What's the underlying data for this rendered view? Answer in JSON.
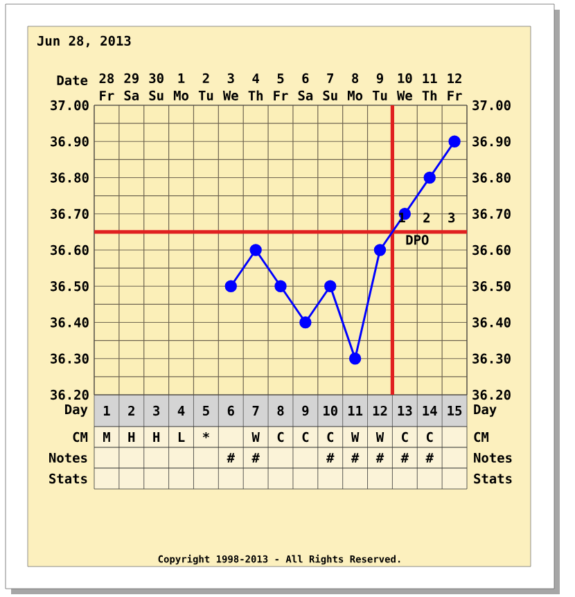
{
  "chart_data": {
    "type": "line",
    "title": "Jun 28, 2013",
    "categories": [
      "28 Fr",
      "29 Sa",
      "30 Su",
      "1 Mo",
      "2 Tu",
      "3 We",
      "4 Th",
      "5 Fr",
      "6 Sa",
      "7 Su",
      "8 Mo",
      "9 Tu",
      "10 We",
      "11 Th",
      "12 Fr"
    ],
    "values": [
      null,
      null,
      null,
      null,
      null,
      36.5,
      36.6,
      36.5,
      36.4,
      36.5,
      36.3,
      36.6,
      36.7,
      36.8,
      36.9
    ],
    "color": "#0000ff",
    "marker": "circle",
    "line_style": "solid",
    "grid": true,
    "xlabel": "Date",
    "x2label": "Day",
    "x2lim": [
      0.5,
      15.5
    ],
    "x2ticks": [
      1,
      2,
      3,
      4,
      5,
      6,
      7,
      8,
      9,
      10,
      11,
      12,
      13,
      14,
      15
    ],
    "ylim": [
      36.2,
      37.0
    ],
    "yticks": [
      {
        "value": 36.2,
        "label": "36.20"
      },
      {
        "value": 36.3,
        "label": "36.30"
      },
      {
        "value": 36.4,
        "label": "36.40"
      },
      {
        "value": 36.5,
        "label": "36.50"
      },
      {
        "value": 36.6,
        "label": "36.60"
      },
      {
        "value": 36.7,
        "label": "36.70"
      },
      {
        "value": 36.8,
        "label": "36.80"
      },
      {
        "value": 36.9,
        "label": "36.90"
      },
      {
        "value": 37.0,
        "label": "37.00"
      }
    ],
    "y2lim": [
      36.2,
      37.0
    ],
    "y2ticks": [
      {
        "value": 36.2,
        "label": "36.20"
      },
      {
        "value": 36.3,
        "label": "36.30"
      },
      {
        "value": 36.4,
        "label": "36.40"
      },
      {
        "value": 36.5,
        "label": "36.50"
      },
      {
        "value": 36.6,
        "label": "36.60"
      },
      {
        "value": 36.7,
        "label": "36.70"
      },
      {
        "value": 36.8,
        "label": "36.80"
      },
      {
        "value": 36.9,
        "label": "36.90"
      },
      {
        "value": 37.0,
        "label": "37.00"
      }
    ],
    "ref_lines": [
      {
        "axis": "y",
        "value": 36.65,
        "color": "#e02020"
      },
      {
        "axis": "x",
        "value": "9 Tu",
        "color": "#e02020"
      }
    ],
    "annotations": [
      "1",
      "2",
      "3",
      "DPO",
      "CM",
      "M",
      "H",
      "H",
      "L",
      "*",
      null,
      "W",
      "C",
      "C",
      "C",
      "W",
      "W",
      "C",
      "C",
      null,
      "Notes",
      null,
      null,
      null,
      null,
      null,
      "#",
      "#",
      null,
      null,
      "#",
      "#",
      "#",
      "#",
      "#",
      null,
      "Stats",
      null,
      null,
      null,
      null,
      null,
      null,
      null,
      null,
      null,
      null,
      null,
      null,
      null,
      null,
      null,
      "Copyright 1998-2013 - All Rights Reserved."
    ]
  }
}
